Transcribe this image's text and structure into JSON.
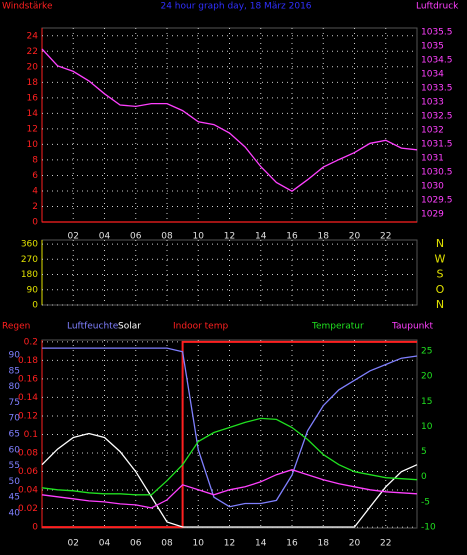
{
  "chart_data": [
    {
      "type": "line",
      "title": "24 hour graph day, 18 März 2016",
      "y_label": "Windstärke",
      "y2_label": "Luftdruck",
      "y_color": "#ff2020",
      "y2_color": "#ff40ff",
      "grid": true,
      "x": [
        0,
        1,
        2,
        3,
        4,
        5,
        6,
        7,
        8,
        9,
        10,
        11,
        12,
        13,
        14,
        15,
        16,
        17,
        18,
        19,
        20,
        21,
        22,
        23,
        24
      ],
      "xlim": [
        0,
        24
      ],
      "xticks": [
        {
          "value": 2,
          "label": "02"
        },
        {
          "value": 4,
          "label": "04"
        },
        {
          "value": 6,
          "label": "06"
        },
        {
          "value": 8,
          "label": "08"
        },
        10,
        12,
        14,
        16,
        18,
        20,
        22
      ],
      "ylim": [
        0,
        25
      ],
      "yticks": [
        0,
        2,
        4,
        6,
        8,
        10,
        12,
        14,
        16,
        18,
        20,
        22,
        24
      ],
      "y2lim": [
        1028.72,
        1035.65
      ],
      "y2ticks": [
        1029,
        1029.5,
        1030,
        1030.5,
        1031,
        1031.5,
        1032,
        1032.5,
        1033,
        1033.5,
        1034,
        1034.5,
        1035,
        1035.5
      ],
      "series": [
        {
          "name": "Windstärke",
          "color": "#ff2020",
          "values": [
            0,
            0,
            0,
            0,
            0,
            0,
            0,
            0,
            0,
            0,
            0,
            0,
            0,
            0,
            0,
            0,
            0,
            0,
            0,
            0,
            0,
            0,
            0,
            0,
            0
          ]
        },
        {
          "name": "Luftdruck",
          "color": "#ff40ff",
          "axis": "y2",
          "values": [
            1034.9,
            1034.3,
            1034.1,
            1033.76,
            1033.3,
            1032.9,
            1032.85,
            1032.95,
            1032.95,
            1032.7,
            1032.3,
            1032.2,
            1031.9,
            1031.4,
            1030.7,
            1030.13,
            1029.82,
            1030.23,
            1030.68,
            1030.95,
            1031.2,
            1031.53,
            1031.64,
            1031.36,
            1031.3
          ]
        }
      ]
    },
    {
      "type": "line",
      "y_color": "#e0e000",
      "y2_color": "#e0e000",
      "grid": true,
      "xlim": [
        0,
        24
      ],
      "xticks": [
        2,
        4,
        6,
        8,
        10,
        12,
        14,
        16,
        18,
        20,
        22
      ],
      "ylim": [
        0,
        384
      ],
      "yticks": [
        0,
        90,
        180,
        270,
        360
      ],
      "y2lim": [
        0,
        384
      ],
      "y2ticks": [
        {
          "value": 0,
          "label": "N"
        },
        {
          "value": 90,
          "label": "O"
        },
        {
          "value": 180,
          "label": "S"
        },
        {
          "value": 270,
          "label": "W"
        },
        {
          "value": 360,
          "label": "N"
        }
      ],
      "series": []
    },
    {
      "type": "line",
      "annotation": "Indoor temp",
      "y_color": "#ff2020",
      "y2_color": "#20e020",
      "y3_color": "#8080ff",
      "grid": true,
      "x": [
        0,
        1,
        2,
        3,
        4,
        5,
        6,
        7,
        8,
        9,
        10,
        11,
        12,
        13,
        14,
        15,
        16,
        17,
        18,
        19,
        20,
        21,
        22,
        23,
        24
      ],
      "xlim": [
        0,
        24
      ],
      "xticks": [
        {
          "value": 2,
          "label": "02"
        },
        {
          "value": 4,
          "label": "04"
        },
        {
          "value": 6,
          "label": "06"
        },
        {
          "value": 8,
          "label": "08"
        },
        10,
        12,
        14,
        16,
        18,
        20,
        22
      ],
      "ylim": [
        -0.001,
        0.202
      ],
      "yticks": [
        0,
        0.02,
        0.04,
        0.06,
        0.08,
        0.1,
        0.12,
        0.14,
        0.16,
        0.18,
        0.2
      ],
      "y2lim": [
        -10.2,
        27.2
      ],
      "y2ticks": [
        -10,
        -5,
        0,
        5,
        10,
        15,
        20,
        25
      ],
      "y3lim": [
        35.25,
        94.75
      ],
      "y3ticks": [
        40,
        45,
        50,
        55,
        60,
        65,
        70,
        75,
        80,
        85,
        90
      ],
      "series": [
        {
          "name": "Regen",
          "color": "#ff2020",
          "x": [
            0,
            9,
            9,
            24
          ],
          "values": [
            0,
            0,
            0.2,
            0.2
          ]
        },
        {
          "name": "Luftfeuchte",
          "color": "#8080ff",
          "axis": "y3",
          "values": [
            92.2,
            92.2,
            92.2,
            92.2,
            92.2,
            92.2,
            92.2,
            92.2,
            92.2,
            91,
            60,
            45,
            42,
            43,
            43,
            44,
            52,
            66,
            74,
            79,
            82,
            85,
            87,
            89,
            89.7
          ]
        },
        {
          "name": "Solar",
          "color": "#ffffff",
          "axis": "y2",
          "values": [
            2.4,
            5.5,
            7.8,
            8.6,
            7.8,
            5,
            1,
            -4,
            -9,
            -10,
            -10,
            -10,
            -10,
            -10,
            -10,
            -10,
            -10,
            -10,
            -10,
            -10,
            -10,
            -6,
            -2,
            1,
            2.4
          ]
        },
        {
          "name": "Temperatur",
          "color": "#20e020",
          "axis": "y2",
          "values": [
            -2.2,
            -2.6,
            -2.8,
            -3.2,
            -3.4,
            -3.4,
            -3.6,
            -3.6,
            -0.8,
            2.4,
            7,
            8.8,
            9.8,
            10.8,
            11.6,
            11.4,
            9.8,
            7.4,
            4.4,
            2.4,
            1,
            0.4,
            -0.2,
            -0.4,
            -0.6
          ]
        },
        {
          "name": "Taupunkt",
          "color": "#ff40ff",
          "axis": "y2",
          "values": [
            -3.6,
            -4,
            -4.4,
            -4.8,
            -5,
            -5.4,
            -5.6,
            -6.2,
            -4.6,
            -1.6,
            -2.6,
            -3.6,
            -2.6,
            -2,
            -1,
            0.4,
            1.4,
            0.4,
            -0.6,
            -1.4,
            -2,
            -2.6,
            -3,
            -3.2,
            -3.4
          ]
        }
      ]
    }
  ]
}
